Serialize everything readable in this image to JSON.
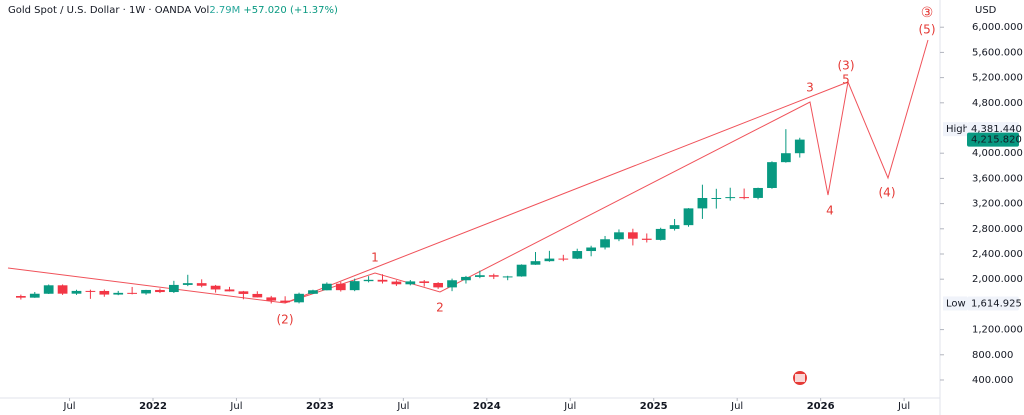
{
  "chart_data": {
    "type": "candlestick",
    "header": {
      "symbol": "Gold Spot / U.S. Dollar · 1W · OANDA",
      "volume_label": "Vol",
      "volume": "2.79M",
      "change": "+57.020 (+1.37%)"
    },
    "currency": "USD",
    "up_color": "#089981",
    "down_color": "#f23645",
    "x": [
      "2021-03",
      "2021-04",
      "2021-05",
      "2021-06",
      "2021-07",
      "2021-08",
      "2021-09",
      "2021-10",
      "2021-11",
      "2021-12",
      "2022-01",
      "2022-02",
      "2022-03",
      "2022-04",
      "2022-05",
      "2022-06",
      "2022-07",
      "2022-08",
      "2022-09",
      "2022-10",
      "2022-11",
      "2022-12",
      "2023-01",
      "2023-02",
      "2023-03",
      "2023-04",
      "2023-05",
      "2023-06",
      "2023-07",
      "2023-08",
      "2023-09",
      "2023-10",
      "2023-11",
      "2023-12",
      "2024-01",
      "2024-02",
      "2024-03",
      "2024-04",
      "2024-05",
      "2024-06",
      "2024-07",
      "2024-08",
      "2024-09",
      "2024-10",
      "2024-11",
      "2024-12",
      "2025-01",
      "2025-02",
      "2025-03",
      "2025-04",
      "2025-05",
      "2025-06",
      "2025-07",
      "2025-08",
      "2025-09",
      "2025-10",
      "2025-11"
    ],
    "open": [
      1733,
      1707,
      1769,
      1903,
      1770,
      1814,
      1813,
      1756,
      1783,
      1774,
      1829,
      1796,
      1909,
      1937,
      1896,
      1837,
      1807,
      1766,
      1711,
      1660,
      1633,
      1768,
      1824,
      1928,
      1826,
      1969,
      1990,
      1962,
      1919,
      1965,
      1940,
      1870,
      1983,
      2036,
      2063,
      2040,
      2044,
      2230,
      2286,
      2327,
      2326,
      2447,
      2503,
      2634,
      2744,
      2643,
      2624,
      2798,
      2858,
      3124,
      3289,
      3289,
      3303,
      3290,
      3448,
      3858,
      4000
    ],
    "high": [
      1755,
      1797,
      1916,
      1917,
      1832,
      1834,
      1836,
      1814,
      1877,
      1831,
      1853,
      1974,
      2070,
      1998,
      1909,
      1879,
      1814,
      1808,
      1735,
      1729,
      1786,
      1833,
      1949,
      1959,
      2009,
      2048,
      2079,
      1983,
      1987,
      1987,
      1953,
      2009,
      2052,
      2135,
      2088,
      2054,
      2236,
      2432,
      2450,
      2387,
      2484,
      2531,
      2686,
      2790,
      2801,
      2726,
      2817,
      2956,
      3128,
      3500,
      3435,
      3452,
      3439,
      3453,
      3871,
      4381.44,
      4245
    ],
    "low": [
      1677,
      1704,
      1765,
      1750,
      1751,
      1688,
      1721,
      1746,
      1759,
      1753,
      1780,
      1780,
      1890,
      1872,
      1787,
      1805,
      1681,
      1709,
      1614.925,
      1618,
      1616,
      1765,
      1823,
      1804,
      1810,
      1949,
      1932,
      1893,
      1902,
      1884,
      1846,
      1810,
      1931,
      2016,
      2002,
      1984,
      2039,
      2228,
      2277,
      2286,
      2319,
      2364,
      2472,
      2604,
      2536,
      2583,
      2614,
      2772,
      2833,
      2957,
      3121,
      3247,
      3268,
      3268,
      3436,
      3850,
      3931
    ],
    "close": [
      1707,
      1769,
      1903,
      1770,
      1814,
      1813,
      1756,
      1783,
      1774,
      1829,
      1796,
      1909,
      1937,
      1896,
      1837,
      1807,
      1766,
      1711,
      1660,
      1633,
      1768,
      1824,
      1928,
      1826,
      1969,
      1990,
      1962,
      1919,
      1965,
      1940,
      1870,
      1983,
      2036,
      2063,
      2040,
      2044,
      2230,
      2286,
      2327,
      2326,
      2447,
      2503,
      2634,
      2744,
      2643,
      2624,
      2798,
      2858,
      3124,
      3289,
      3289,
      3303,
      3290,
      3448,
      3858,
      4000,
      4215.82
    ],
    "xlim": [
      "2021-02",
      "2026-08"
    ],
    "xticks": [
      {
        "value": "2021-07",
        "label": "Jul"
      },
      {
        "value": "2022-01",
        "label": "2022"
      },
      {
        "value": "2022-07",
        "label": "Jul"
      },
      {
        "value": "2023-01",
        "label": "2023"
      },
      {
        "value": "2023-07",
        "label": "Jul"
      },
      {
        "value": "2024-01",
        "label": "2024"
      },
      {
        "value": "2024-07",
        "label": "Jul"
      },
      {
        "value": "2025-01",
        "label": "2025"
      },
      {
        "value": "2025-07",
        "label": "Jul"
      },
      {
        "value": "2026-01",
        "label": "2026"
      },
      {
        "value": "2026-07",
        "label": "Jul"
      }
    ],
    "ylim": [
      114,
      6432
    ],
    "yticks": [
      {
        "value": 400,
        "label": "400.000"
      },
      {
        "value": 800,
        "label": "800.000"
      },
      {
        "value": 1200,
        "label": "1,200.000"
      },
      {
        "value": 2000,
        "label": "2,000.000"
      },
      {
        "value": 2400,
        "label": "2,400.000"
      },
      {
        "value": 2800,
        "label": "2,800.000"
      },
      {
        "value": 3200,
        "label": "3,200.000"
      },
      {
        "value": 3600,
        "label": "3,600.000"
      },
      {
        "value": 4000,
        "label": "4,000.000"
      },
      {
        "value": 4800,
        "label": "4,800.000"
      },
      {
        "value": 5200,
        "label": "5,200.000"
      },
      {
        "value": 5600,
        "label": "5,600.000"
      },
      {
        "value": 6000,
        "label": "6,000.000"
      }
    ],
    "high_marker": {
      "name": "High",
      "value": 4381.44,
      "label": "4,381.440"
    },
    "last_price": {
      "value": 4215.82,
      "label": "4,215.820"
    },
    "low_marker": {
      "name": "Low",
      "value": 1614.925,
      "label": "1,614.925"
    },
    "annotations": [
      "(2)",
      "1",
      "2",
      "3",
      "4",
      "5",
      "(3)",
      "(4)",
      "(5)",
      "③"
    ]
  }
}
